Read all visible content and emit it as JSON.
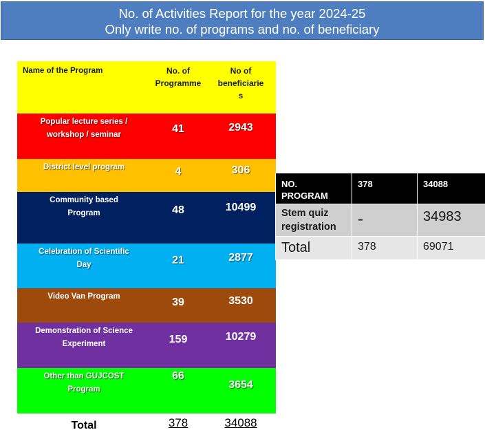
{
  "title": {
    "line1": "No. of Activities Report for the year 2024-25",
    "line2": "Only write no. of programs and no. of beneficiary"
  },
  "main_table": {
    "headers": [
      "Name of the Program",
      "No. of Programme",
      "No of beneficiaries"
    ],
    "header_col3_lines": [
      "No of",
      "beneficiarie",
      "s"
    ],
    "rows": [
      {
        "name_lines": [
          "Popular lecture series /",
          "workshop / seminar"
        ],
        "programmes": "41",
        "beneficiaries": "2943"
      },
      {
        "name_lines": [
          "District level program"
        ],
        "programmes": "4",
        "beneficiaries": "306"
      },
      {
        "name_lines": [
          "Community based",
          "Program"
        ],
        "programmes": "48",
        "beneficiaries": "10499"
      },
      {
        "name_lines": [
          "Celebration of  Scientific",
          "Day"
        ],
        "programmes": "21",
        "beneficiaries": "2877"
      },
      {
        "name_lines": [
          "Video Van Program"
        ],
        "programmes": "39",
        "beneficiaries": "3530"
      },
      {
        "name_lines": [
          "Demonstration of Science",
          "Experiment"
        ],
        "programmes": "159",
        "beneficiaries": "10279"
      },
      {
        "name_lines": [
          "Other than GUJCOST",
          "Program"
        ],
        "programmes": "66",
        "beneficiaries": "3654"
      }
    ],
    "total": {
      "label": "Total",
      "programmes": "378",
      "beneficiaries": "34088"
    },
    "row_colors": [
      "#ff0000",
      "#ffc000",
      "#002060",
      "#00b0f0",
      "#9e4a0c",
      "#7030a0",
      "#00ff00"
    ]
  },
  "side_table": {
    "header": {
      "c1_line1": "NO.",
      "c1_line2": "PROGRAM",
      "c2": "378",
      "c3": "34088"
    },
    "row1": {
      "c1_line1": "Stem quiz",
      "c1_line2": "registration",
      "c2": "-",
      "c3": "34983"
    },
    "row2": {
      "c1": "Total",
      "c2": "378",
      "c3": "69071"
    }
  }
}
